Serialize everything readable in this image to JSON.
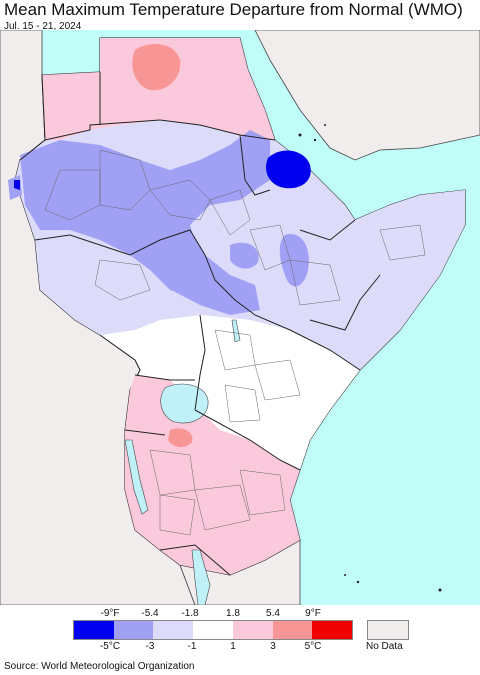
{
  "title": "Mean Maximum Temperature Departure from Normal (WMO)",
  "subtitle": "Jul. 15 - 21, 2024",
  "source": "Source: World Meteorological Organization",
  "colors": {
    "ocean": "#c0fcf8",
    "land_base": "#ffffff",
    "outside_region": "#f2eded",
    "border": "#222222",
    "admin_border": "#555555",
    "cold_strong": "#0000ee",
    "cold_mid": "#a0a0f5",
    "cold_light": "#dcdcfa",
    "neutral": "#ffffff",
    "warm_light": "#fbc9dc",
    "warm_mid": "#f89696",
    "warm_strong": "#f00000",
    "lake": "#c0f0f8"
  },
  "legend": {
    "fahrenheit_labels": [
      "-9°F",
      "-5.4",
      "-1.8",
      "1.8",
      "5.4",
      "9°F"
    ],
    "celsius_labels": [
      "-5°C",
      "-3",
      "-1",
      "1",
      "3",
      "5°C"
    ],
    "swatches": [
      "#0000ee",
      "#a0a0f5",
      "#dcdcfa",
      "#ffffff",
      "#fbc9dc",
      "#f89696",
      "#f00000"
    ],
    "no_data_label": "No Data",
    "no_data_color": "#f2eded"
  }
}
